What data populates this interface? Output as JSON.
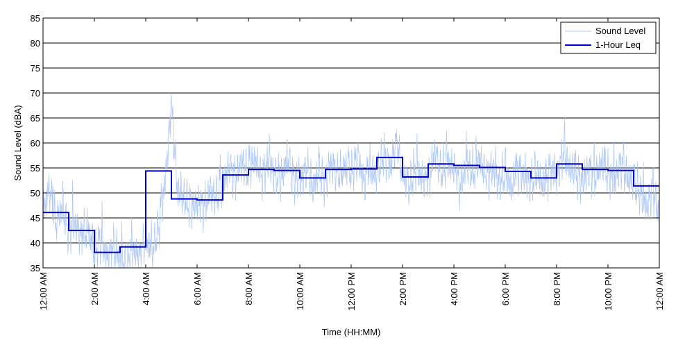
{
  "chart_data": {
    "type": "line",
    "title": "",
    "xlabel": "Time (HH:MM)",
    "ylabel": "Sound Level (dBA)",
    "xlim": [
      0,
      24
    ],
    "ylim": [
      35,
      85
    ],
    "y_ticks": [
      35,
      40,
      45,
      50,
      55,
      60,
      65,
      70,
      75,
      80,
      85
    ],
    "x_tick_hours": [
      0,
      2,
      4,
      6,
      8,
      10,
      12,
      14,
      16,
      18,
      20,
      22,
      24
    ],
    "x_tick_labels": [
      "12:00 AM",
      "2:00 AM",
      "4:00 AM",
      "6:00 AM",
      "8:00 AM",
      "10:00 AM",
      "12:00 PM",
      "2:00 PM",
      "4:00 PM",
      "6:00 PM",
      "8:00 PM",
      "10:00 PM",
      "12:00 AM"
    ],
    "grid": "horizontal",
    "legend_position": "top-right",
    "series": [
      {
        "name": "Sound Level",
        "style": "thin-line",
        "color": "#a9c4f5",
        "x_hours": [
          0,
          0.25,
          0.5,
          0.75,
          1,
          1.25,
          1.5,
          1.75,
          2,
          2.25,
          2.5,
          2.75,
          3,
          3.25,
          3.5,
          3.75,
          4,
          4.25,
          4.5,
          4.75,
          5,
          5.25,
          5.5,
          5.75,
          6,
          6.25,
          6.5,
          6.75,
          7,
          7.25,
          7.5,
          7.75,
          8,
          8.25,
          8.5,
          8.75,
          9,
          9.25,
          9.5,
          9.75,
          10,
          10.25,
          10.5,
          10.75,
          11,
          11.25,
          11.5,
          11.75,
          12,
          12.25,
          12.5,
          12.75,
          13,
          13.25,
          13.5,
          13.75,
          14,
          14.25,
          14.5,
          14.75,
          15,
          15.25,
          15.5,
          15.75,
          16,
          16.25,
          16.5,
          16.75,
          17,
          17.25,
          17.5,
          17.75,
          18,
          18.25,
          18.5,
          18.75,
          19,
          19.25,
          19.5,
          19.75,
          20,
          20.25,
          20.5,
          20.75,
          21,
          21.25,
          21.5,
          21.75,
          22,
          22.25,
          22.5,
          22.75,
          23,
          23.25,
          23.5,
          23.75,
          24
        ],
        "values": [
          46,
          51,
          44,
          47,
          42,
          44,
          41,
          43,
          38,
          41,
          37,
          39,
          37,
          35,
          39,
          37,
          41,
          38,
          43,
          52,
          67,
          50,
          49,
          47,
          48,
          47,
          50,
          49,
          52,
          55,
          53,
          56,
          54,
          57,
          53,
          56,
          54,
          52,
          57,
          53,
          52,
          55,
          51,
          54,
          52,
          56,
          53,
          55,
          54,
          57,
          52,
          55,
          53,
          58,
          55,
          60,
          54,
          51,
          55,
          53,
          52,
          58,
          54,
          56,
          55,
          51,
          56,
          54,
          57,
          53,
          55,
          52,
          54,
          51,
          55,
          53,
          52,
          54,
          51,
          55,
          53,
          58,
          55,
          54,
          52,
          55,
          53,
          56,
          54,
          52,
          56,
          53,
          52,
          50,
          47,
          51,
          45
        ]
      },
      {
        "name": "1-Hour Leq",
        "style": "step",
        "color": "#0000cc",
        "hour_starts": [
          0,
          1,
          2,
          3,
          4,
          5,
          6,
          7,
          8,
          9,
          10,
          11,
          12,
          13,
          14,
          15,
          16,
          17,
          18,
          19,
          20,
          21,
          22,
          23
        ],
        "values": [
          46.1,
          42.5,
          38.1,
          39.2,
          54.4,
          48.8,
          48.6,
          53.6,
          54.7,
          54.5,
          53.0,
          54.7,
          54.8,
          57.1,
          53.2,
          55.8,
          55.5,
          55.1,
          54.3,
          53.0,
          55.8,
          54.7,
          54.5,
          51.4
        ]
      }
    ]
  }
}
